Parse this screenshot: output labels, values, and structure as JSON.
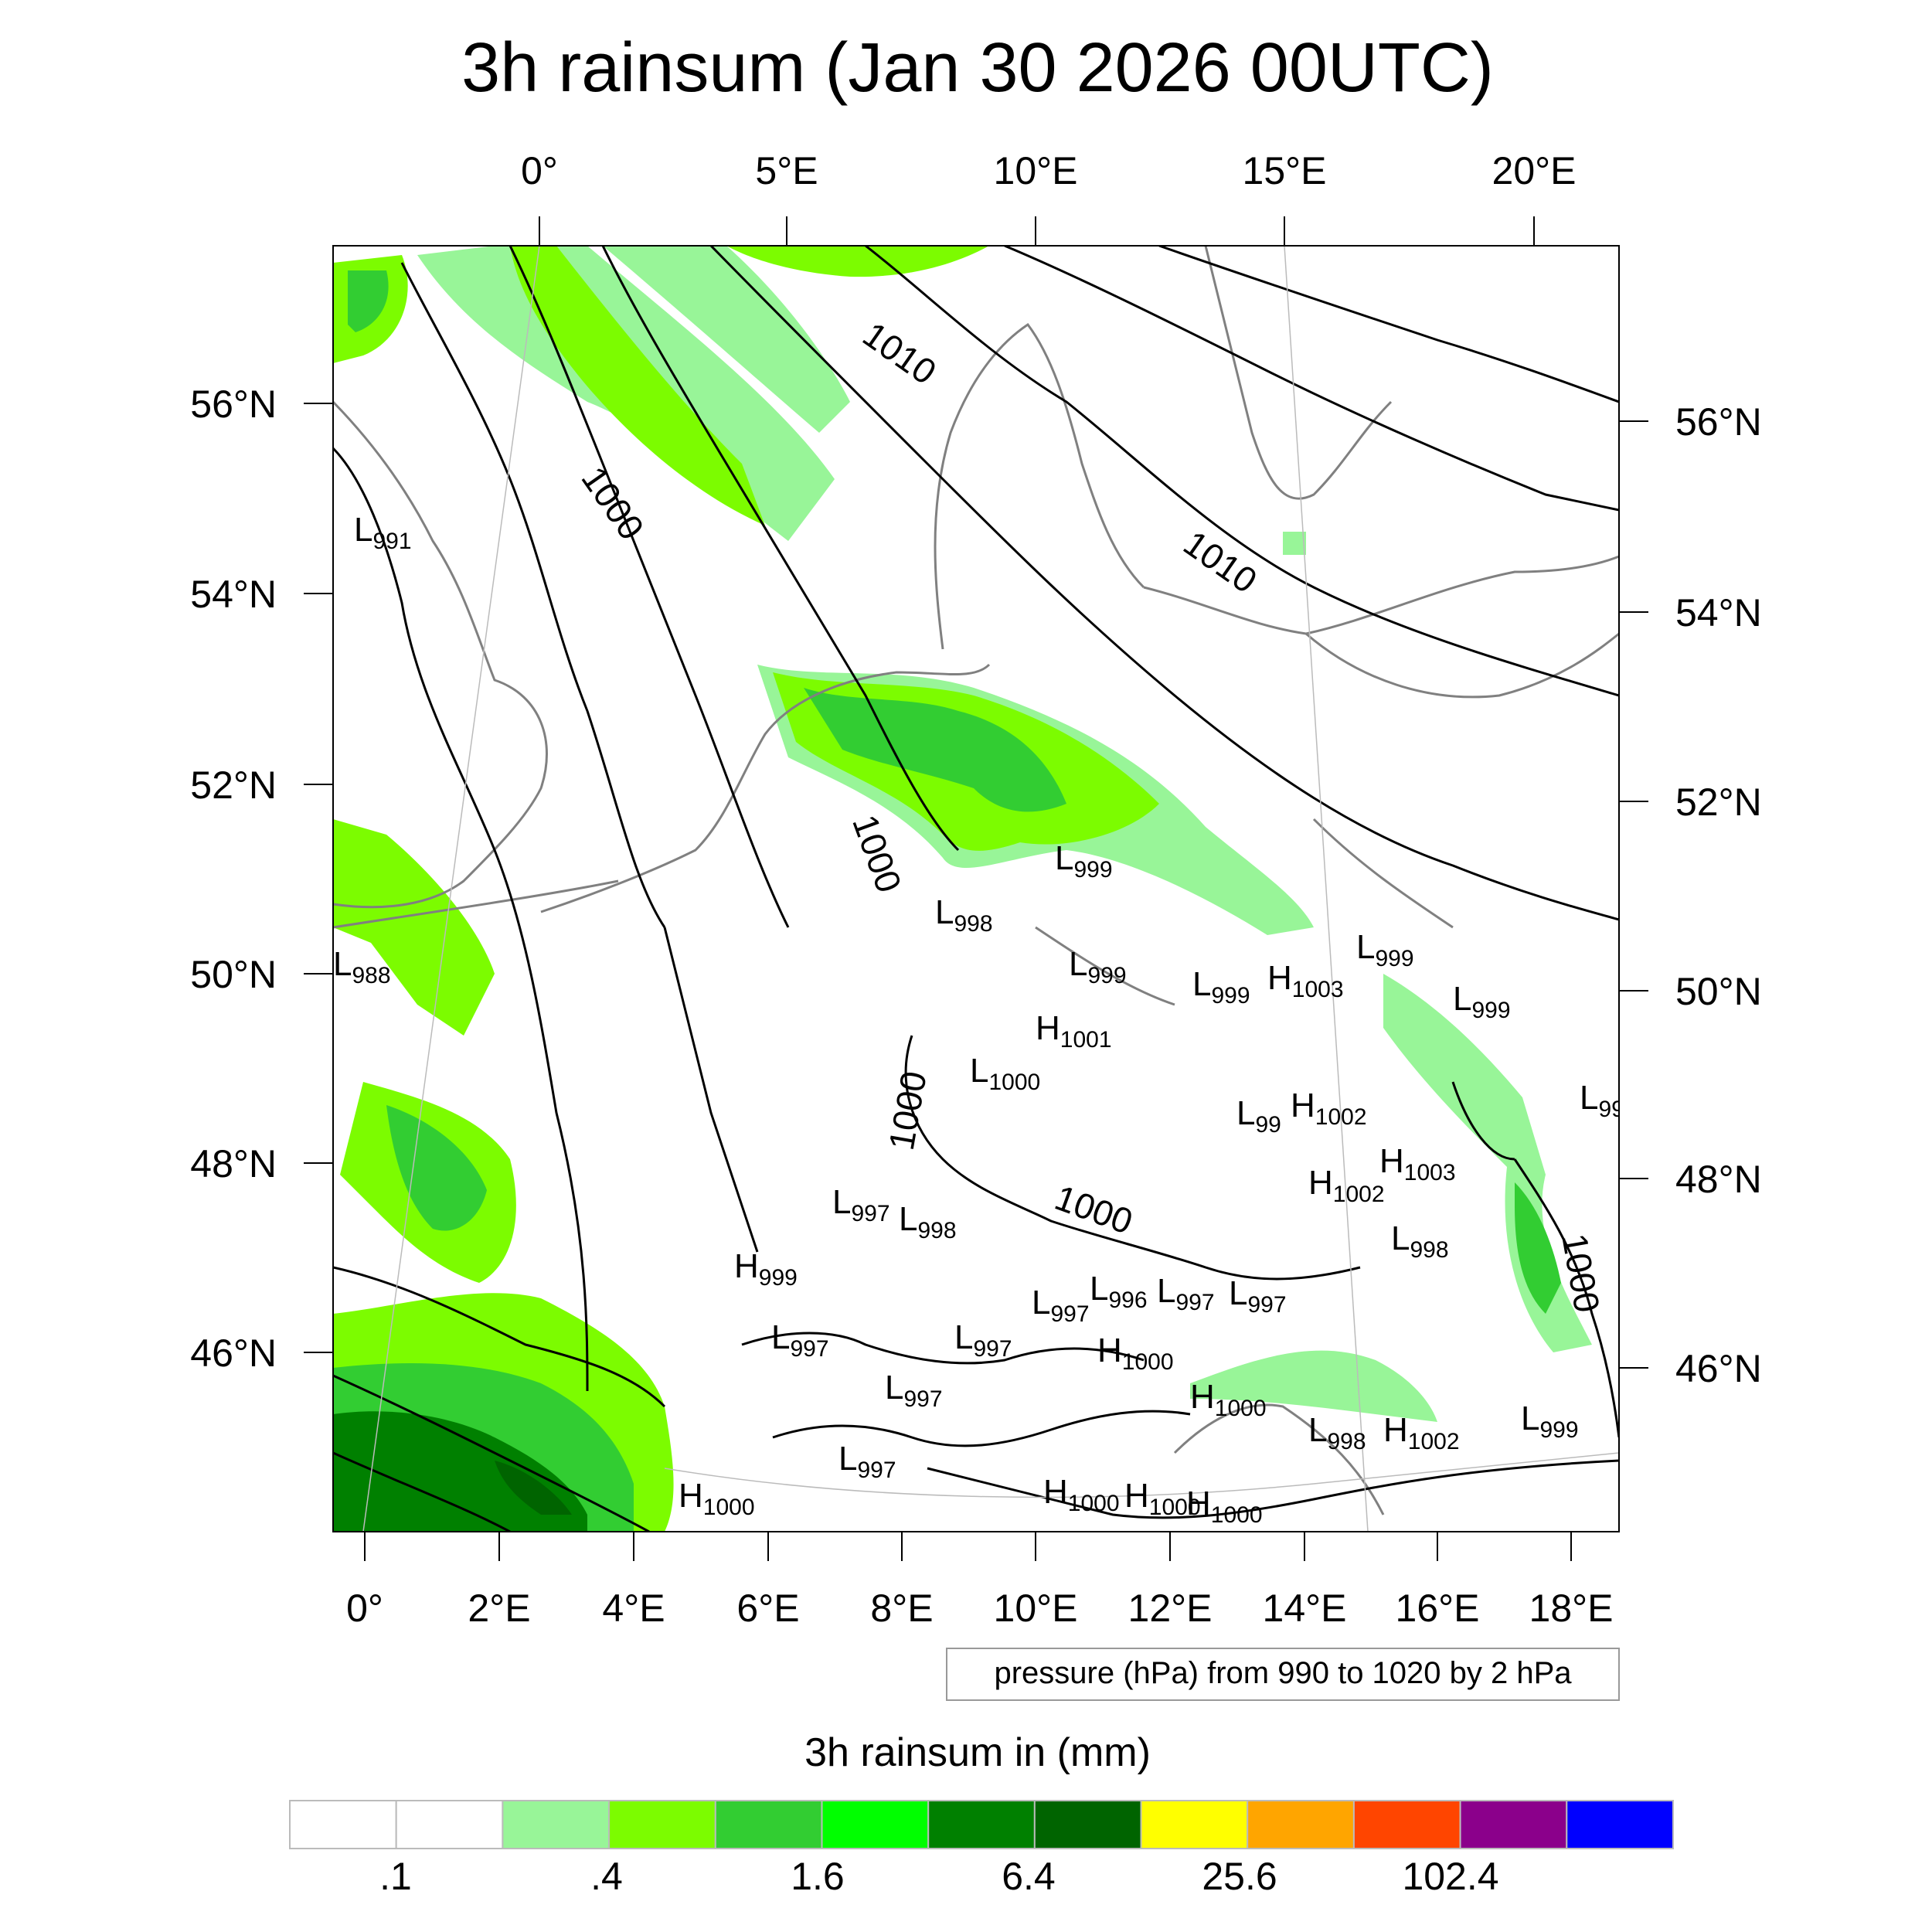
{
  "title": "3h rainsum (Jan 30 2026 00UTC)",
  "top_longitudes": [
    "0°",
    "5°E",
    "10°E",
    "15°E",
    "20°E"
  ],
  "bottom_longitudes": [
    "0°",
    "2°E",
    "4°E",
    "6°E",
    "8°E",
    "10°E",
    "12°E",
    "14°E",
    "16°E",
    "18°E"
  ],
  "left_latitudes": [
    "56°N",
    "54°N",
    "52°N",
    "50°N",
    "48°N",
    "46°N"
  ],
  "right_latitudes": [
    "56°N",
    "54°N",
    "52°N",
    "50°N",
    "48°N",
    "46°N"
  ],
  "contour_labels": [
    "1010",
    "1000",
    "1010",
    "1000",
    "1000",
    "1000",
    "1000"
  ],
  "pressure_centers": [
    {
      "t": "L",
      "v": "991"
    },
    {
      "t": "L",
      "v": "988"
    },
    {
      "t": "L",
      "v": "999"
    },
    {
      "t": "L",
      "v": "998"
    },
    {
      "t": "L",
      "v": "999"
    },
    {
      "t": "L",
      "v": "999"
    },
    {
      "t": "H",
      "v": "1003"
    },
    {
      "t": "L",
      "v": "999"
    },
    {
      "t": "L",
      "v": "999"
    },
    {
      "t": "H",
      "v": "1001"
    },
    {
      "t": "L",
      "v": "1000"
    },
    {
      "t": "L",
      "v": "99"
    },
    {
      "t": "H",
      "v": "1002"
    },
    {
      "t": "L",
      "v": "99"
    },
    {
      "t": "H",
      "v": "1003"
    },
    {
      "t": "H",
      "v": "1002"
    },
    {
      "t": "L",
      "v": "997"
    },
    {
      "t": "L",
      "v": "998"
    },
    {
      "t": "L",
      "v": "998"
    },
    {
      "t": "H",
      "v": "999"
    },
    {
      "t": "L",
      "v": "997"
    },
    {
      "t": "L",
      "v": "996"
    },
    {
      "t": "L",
      "v": "997"
    },
    {
      "t": "L",
      "v": "997"
    },
    {
      "t": "L",
      "v": "997"
    },
    {
      "t": "L",
      "v": "997"
    },
    {
      "t": "H",
      "v": "1000"
    },
    {
      "t": "L",
      "v": "997"
    },
    {
      "t": "H",
      "v": "1000"
    },
    {
      "t": "L",
      "v": "998"
    },
    {
      "t": "H",
      "v": "1002"
    },
    {
      "t": "L",
      "v": "999"
    },
    {
      "t": "L",
      "v": "997"
    },
    {
      "t": "H",
      "v": "1000"
    },
    {
      "t": "H",
      "v": "1000"
    },
    {
      "t": "H",
      "v": "1000"
    },
    {
      "t": "H",
      "v": "1000"
    }
  ],
  "pressure_info": "pressure (hPa) from 990 to 1020 by 2 hPa",
  "colorbar": {
    "title": "3h rainsum in (mm)",
    "colors": [
      "#ffffff",
      "#ffffff",
      "#98f598",
      "#7cfc00",
      "#32cd32",
      "#00ff00",
      "#008000",
      "#006400",
      "#ffff00",
      "#ffa500",
      "#ff4500",
      "#8b008b",
      "#0000ff"
    ],
    "labels": [
      ".1",
      ".4",
      "1.6",
      "6.4",
      "25.6",
      "102.4"
    ]
  },
  "colors": {
    "light_green": "#98f598",
    "lawn_green": "#7cfc00",
    "lime_green": "#32cd32",
    "green": "#00ff00",
    "dark_green": "#008000",
    "deep_green": "#006400",
    "coastline": "#808080"
  }
}
